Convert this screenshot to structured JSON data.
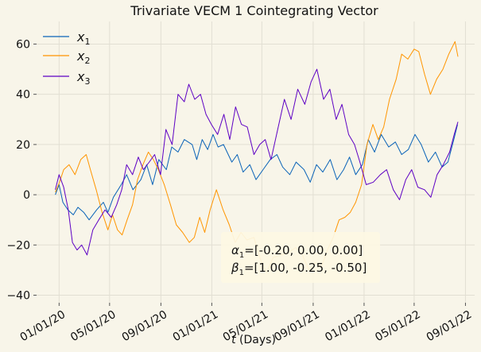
{
  "chart_data": {
    "type": "line",
    "title": "Trivariate VECM 1 Cointegrating Vector",
    "xlabel_math": "t",
    "xlabel_rest": " (Days)",
    "ylabel": "",
    "ylim": [
      -43,
      69
    ],
    "y_ticks": [
      -40,
      -20,
      0,
      20,
      40,
      60
    ],
    "x_ticks": [
      "2020-01-01",
      "2020-05-01",
      "2020-09-01",
      "2021-01-01",
      "2021-05-01",
      "2021-09-01",
      "2022-01-01",
      "2022-05-01",
      "2022-09-01"
    ],
    "x_tick_labels": [
      "01/01/20",
      "05/01/20",
      "09/01/20",
      "01/01/21",
      "05/01/21",
      "09/01/21",
      "01/01/22",
      "05/01/22",
      "09/01/22"
    ],
    "xlim": [
      "2019-11-08",
      "2022-09-23"
    ],
    "grid": true,
    "legend_position": "top-left",
    "colors": {
      "x1": "#0a63b8",
      "x2": "#ff9500",
      "x3": "#5d00c4",
      "background": "#f8f5e9",
      "grid": "#e2dfd3",
      "annotation_box": "#fdf8e3"
    },
    "annotation": {
      "alpha_symbol": "α",
      "alpha_sub": "1",
      "alpha_text": "=[-0.20, 0.00, 0.00]",
      "beta_symbol": "β",
      "beta_sub": "1",
      "beta_text": "=[1.00, -0.25, -0.50]"
    },
    "series": [
      {
        "name_main": "x",
        "name_sub": "1",
        "color": "#0a63b8",
        "x": [
          "2019-12-23",
          "2020-01-01",
          "2020-01-10",
          "2020-01-22",
          "2020-02-04",
          "2020-02-15",
          "2020-02-29",
          "2020-03-13",
          "2020-03-31",
          "2020-04-16",
          "2020-04-27",
          "2020-05-10",
          "2020-05-29",
          "2020-06-11",
          "2020-06-26",
          "2020-07-15",
          "2020-07-29",
          "2020-08-12",
          "2020-08-27",
          "2020-09-14",
          "2020-09-27",
          "2020-10-12",
          "2020-10-27",
          "2020-11-15",
          "2020-11-26",
          "2020-12-09",
          "2020-12-22",
          "2021-01-04",
          "2021-01-16",
          "2021-01-29",
          "2021-02-18",
          "2021-03-03",
          "2021-03-17",
          "2021-04-02",
          "2021-04-17",
          "2021-05-04",
          "2021-05-21",
          "2021-06-06",
          "2021-06-20",
          "2021-07-07",
          "2021-07-22",
          "2021-08-10",
          "2021-08-25",
          "2021-09-09",
          "2021-09-24",
          "2021-10-12",
          "2021-10-28",
          "2021-11-13",
          "2021-11-27",
          "2021-12-12",
          "2021-12-28",
          "2022-01-11",
          "2022-01-26",
          "2022-02-11",
          "2022-03-01",
          "2022-03-17",
          "2022-04-01",
          "2022-04-17",
          "2022-05-03",
          "2022-05-18",
          "2022-06-04",
          "2022-06-21",
          "2022-07-07",
          "2022-07-21",
          "2022-08-04",
          "2022-08-13"
        ],
        "values": [
          0,
          4,
          -3,
          -6,
          -8,
          -5,
          -7,
          -10,
          -6,
          -3,
          -7,
          -1,
          4,
          8,
          2,
          6,
          12,
          4,
          14,
          10,
          19,
          17,
          22,
          20,
          14,
          22,
          18,
          24,
          19,
          20,
          13,
          16,
          9,
          12,
          6,
          10,
          14,
          16,
          11,
          8,
          13,
          10,
          5,
          12,
          9,
          14,
          6,
          10,
          15,
          8,
          12,
          22,
          17,
          24,
          19,
          21,
          16,
          18,
          24,
          20,
          13,
          17,
          11,
          13,
          22,
          28
        ]
      },
      {
        "name_main": "x",
        "name_sub": "2",
        "color": "#ff9500",
        "x": [
          "2019-12-23",
          "2020-01-02",
          "2020-01-12",
          "2020-01-25",
          "2020-02-08",
          "2020-02-22",
          "2020-03-06",
          "2020-03-16",
          "2020-03-30",
          "2020-04-13",
          "2020-04-27",
          "2020-05-08",
          "2020-05-20",
          "2020-05-31",
          "2020-06-12",
          "2020-06-25",
          "2020-07-07",
          "2020-07-20",
          "2020-08-02",
          "2020-08-14",
          "2020-08-26",
          "2020-09-09",
          "2020-09-24",
          "2020-10-08",
          "2020-10-23",
          "2020-11-08",
          "2020-11-20",
          "2020-12-03",
          "2020-12-15",
          "2020-12-28",
          "2021-01-12",
          "2021-01-28",
          "2021-02-12",
          "2021-02-26",
          "2021-03-12",
          "2021-03-26",
          "2021-04-12",
          "2021-04-28",
          "2021-05-13",
          "2021-05-28",
          "2021-06-16",
          "2021-07-04",
          "2021-07-21",
          "2021-08-06",
          "2021-08-22",
          "2021-09-06",
          "2021-09-20",
          "2021-10-05",
          "2021-10-19",
          "2021-11-02",
          "2021-11-16",
          "2021-11-29",
          "2021-12-12",
          "2021-12-26",
          "2022-01-08",
          "2022-01-22",
          "2022-02-04",
          "2022-02-17",
          "2022-03-03",
          "2022-03-19",
          "2022-04-01",
          "2022-04-16",
          "2022-05-01",
          "2022-05-12",
          "2022-05-26",
          "2022-06-09",
          "2022-06-24",
          "2022-07-09",
          "2022-07-23",
          "2022-08-07",
          "2022-08-14"
        ],
        "values": [
          1,
          5,
          10,
          12,
          8,
          14,
          16,
          10,
          2,
          -7,
          -14,
          -8,
          -14,
          -16,
          -10,
          -4,
          6,
          12,
          17,
          14,
          10,
          4,
          -4,
          -12,
          -15,
          -19,
          -17,
          -9,
          -15,
          -6,
          2,
          -6,
          -12,
          -19,
          -15,
          -18,
          -17,
          -26,
          -31,
          -25,
          -24,
          -23,
          -21,
          -24,
          -30,
          -27,
          -29,
          -22,
          -17,
          -10,
          -9,
          -7,
          -3,
          4,
          20,
          28,
          22,
          27,
          38,
          46,
          56,
          54,
          58,
          57,
          48,
          40,
          46,
          50,
          56,
          61,
          55
        ]
      },
      {
        "name_main": "x",
        "name_sub": "3",
        "color": "#5d00c4",
        "x": [
          "2019-12-23",
          "2020-01-01",
          "2020-01-12",
          "2020-01-23",
          "2020-02-02",
          "2020-02-13",
          "2020-02-24",
          "2020-03-08",
          "2020-03-22",
          "2020-04-05",
          "2020-04-20",
          "2020-05-05",
          "2020-05-18",
          "2020-05-30",
          "2020-06-11",
          "2020-06-25",
          "2020-07-09",
          "2020-07-21",
          "2020-08-04",
          "2020-08-17",
          "2020-08-31",
          "2020-09-13",
          "2020-09-28",
          "2020-10-12",
          "2020-10-27",
          "2020-11-07",
          "2020-11-21",
          "2020-12-05",
          "2020-12-18",
          "2020-12-31",
          "2021-01-15",
          "2021-01-30",
          "2021-02-13",
          "2021-02-27",
          "2021-03-13",
          "2021-03-27",
          "2021-04-12",
          "2021-04-26",
          "2021-05-09",
          "2021-05-23",
          "2021-06-08",
          "2021-06-24",
          "2021-07-10",
          "2021-07-26",
          "2021-08-12",
          "2021-08-27",
          "2021-09-10",
          "2021-09-26",
          "2021-10-11",
          "2021-10-26",
          "2021-11-09",
          "2021-11-25",
          "2021-12-09",
          "2021-12-22",
          "2022-01-06",
          "2022-01-23",
          "2022-02-09",
          "2022-02-24",
          "2022-03-12",
          "2022-03-27",
          "2022-04-11",
          "2022-04-25",
          "2022-05-10",
          "2022-05-26",
          "2022-06-10",
          "2022-06-25",
          "2022-07-10",
          "2022-07-25",
          "2022-08-05",
          "2022-08-14"
        ],
        "values": [
          2,
          8,
          3,
          -6,
          -19,
          -22,
          -20,
          -24,
          -14,
          -10,
          -6,
          -9,
          -4,
          2,
          12,
          8,
          15,
          10,
          13,
          16,
          8,
          26,
          20,
          40,
          37,
          44,
          38,
          40,
          32,
          28,
          24,
          32,
          22,
          35,
          28,
          27,
          16,
          20,
          22,
          14,
          26,
          38,
          30,
          42,
          36,
          45,
          50,
          38,
          42,
          30,
          36,
          24,
          20,
          13,
          4,
          5,
          8,
          10,
          2,
          -2,
          6,
          10,
          3,
          2,
          -1,
          8,
          12,
          17,
          24,
          29
        ]
      }
    ]
  }
}
